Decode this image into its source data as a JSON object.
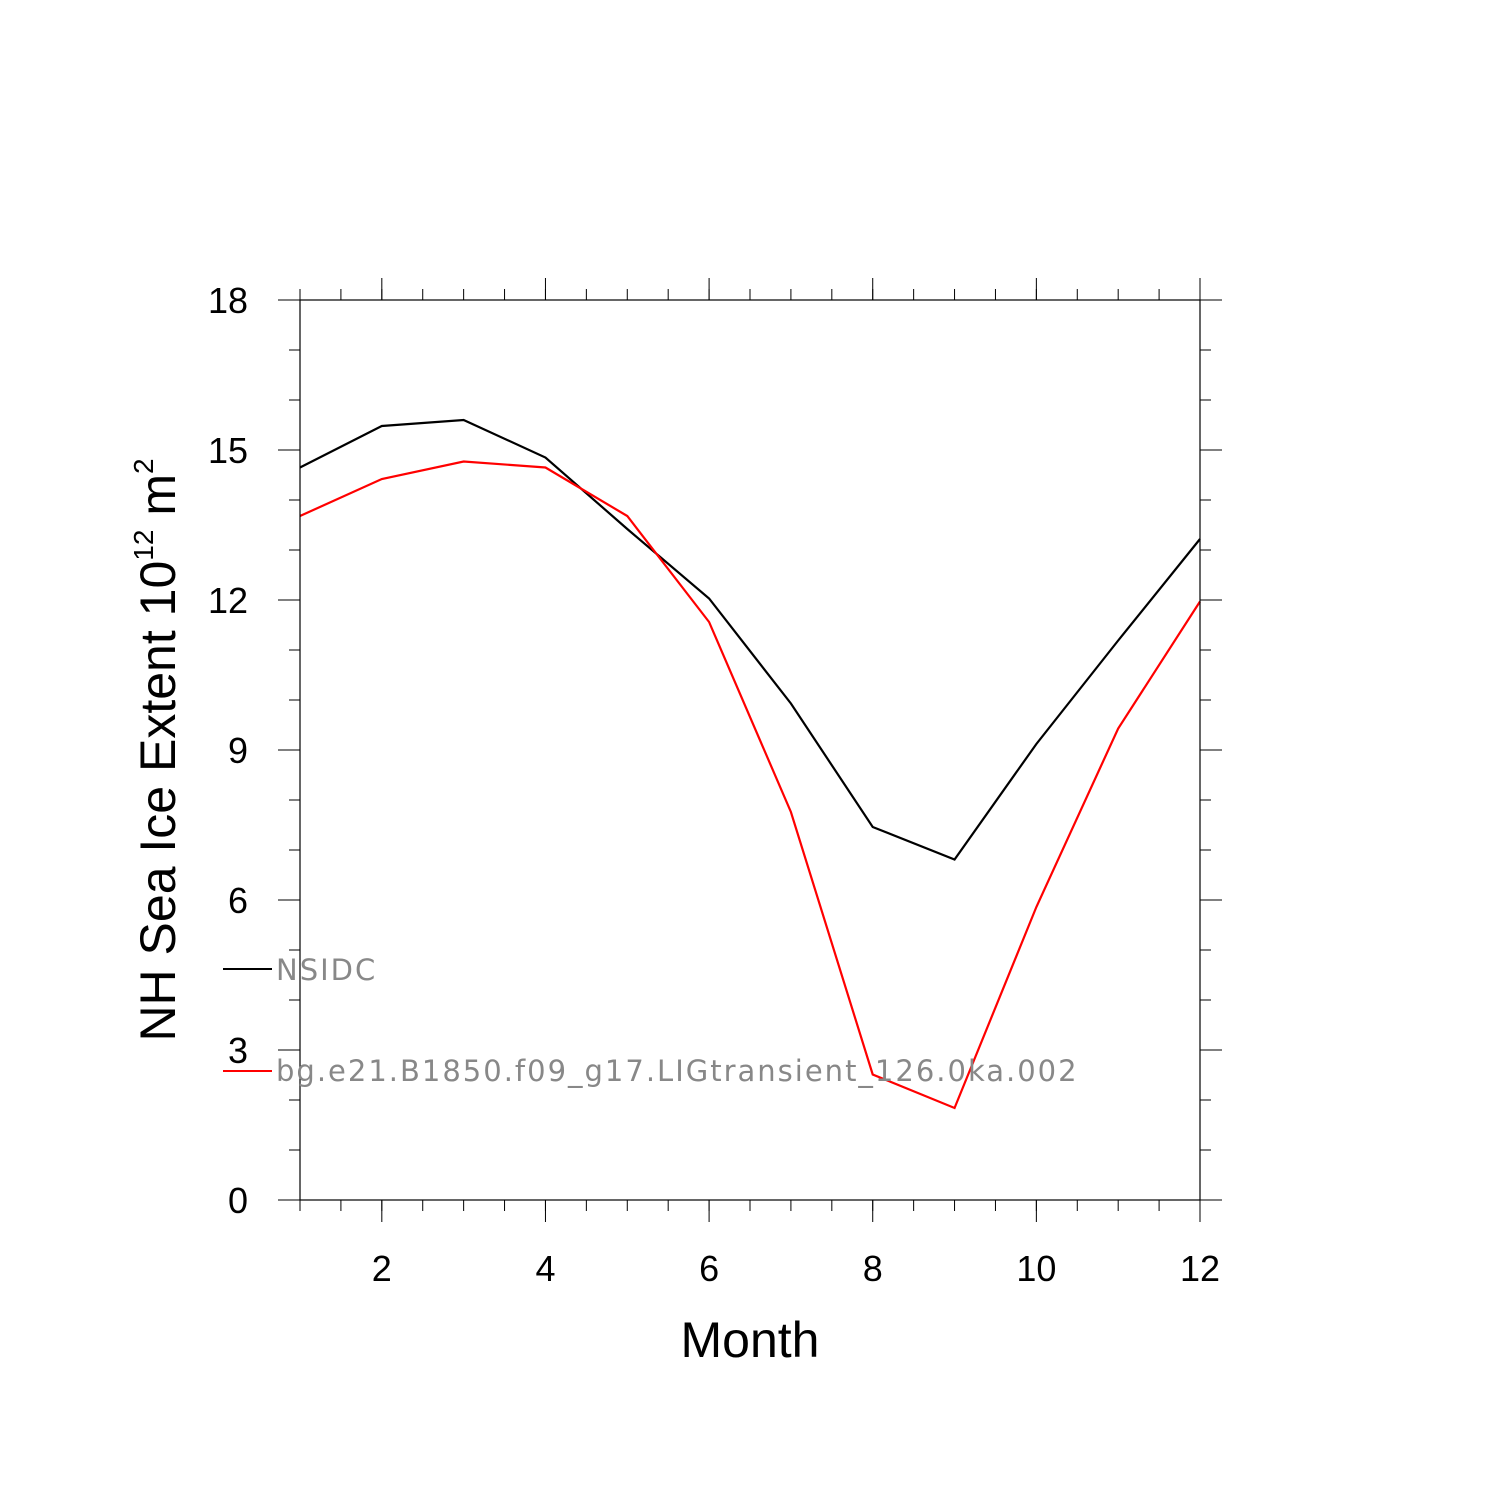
{
  "chart_data": {
    "type": "line",
    "xlabel": "Month",
    "ylabel": {
      "text": "NH Sea Ice Extent 10",
      "exp1": "12",
      "unit": " m",
      "exp2": "2"
    },
    "xlim": [
      1,
      12
    ],
    "ylim": [
      0,
      18
    ],
    "xticks": [
      2,
      4,
      6,
      8,
      10,
      12
    ],
    "yticks": [
      0,
      3,
      6,
      9,
      12,
      15,
      18
    ],
    "legend_position": "inside left, lower",
    "series": [
      {
        "name": "NSIDC",
        "color": "#000000",
        "x": [
          1,
          2,
          3,
          4,
          5,
          6,
          7,
          8,
          9,
          10,
          11,
          12
        ],
        "y": [
          14.65,
          15.48,
          15.6,
          14.85,
          13.42,
          12.03,
          9.93,
          7.46,
          6.81,
          9.12,
          11.19,
          13.22
        ]
      },
      {
        "name": "bg.e21.B1850.f09_g17.LIGtransient_126.0ka.002",
        "color": "#ff0000",
        "x": [
          1,
          2,
          3,
          4,
          5,
          6,
          7,
          8,
          9,
          10,
          11,
          12
        ],
        "y": [
          13.68,
          14.42,
          14.77,
          14.65,
          13.68,
          11.56,
          7.76,
          2.51,
          1.84,
          5.86,
          9.43,
          11.97
        ]
      }
    ]
  }
}
